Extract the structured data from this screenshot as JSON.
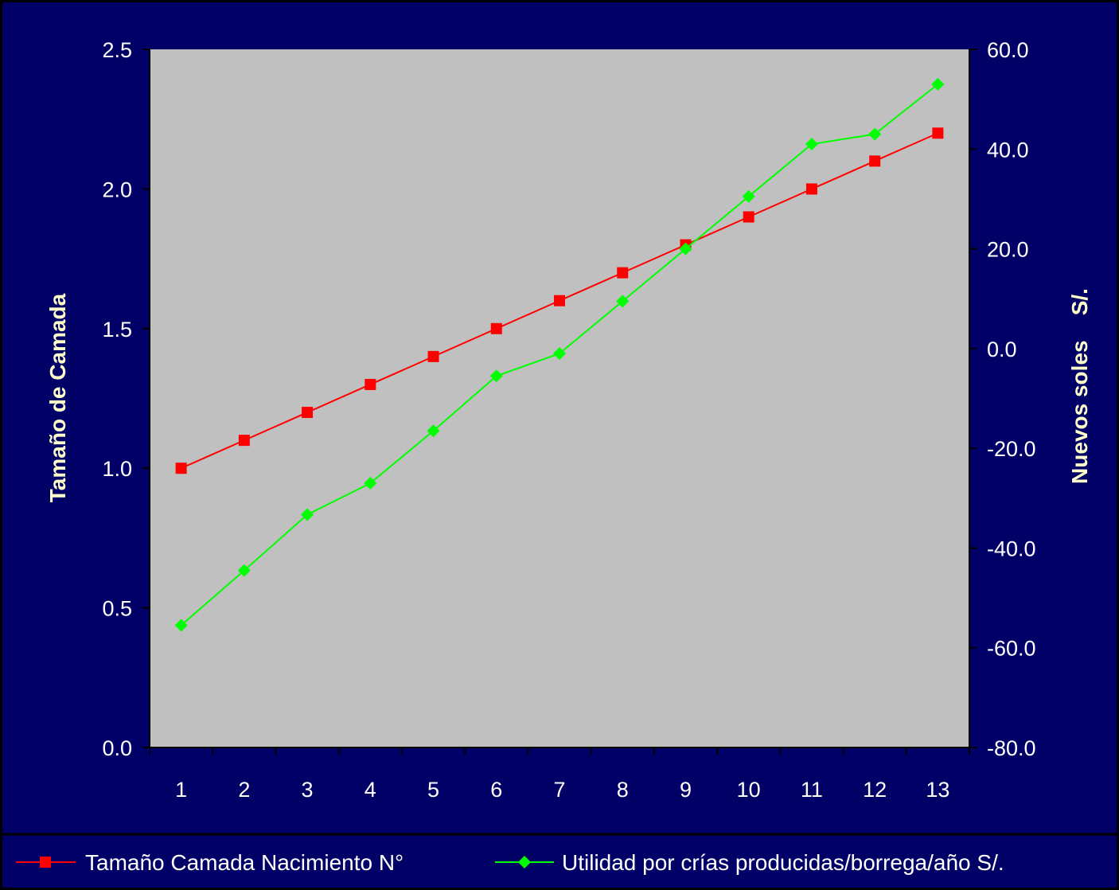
{
  "chart_data": {
    "type": "line",
    "categories": [
      "1",
      "2",
      "3",
      "4",
      "5",
      "6",
      "7",
      "8",
      "9",
      "10",
      "11",
      "12",
      "13"
    ],
    "y_left": {
      "label": "Tamaño de Camada",
      "ylim": [
        0,
        2.5
      ],
      "ticks": [
        "0.0",
        "0.5",
        "1.0",
        "1.5",
        "2.0",
        "2.5"
      ]
    },
    "y_right": {
      "label": "Nuevos soles    S/.",
      "ylim": [
        -80,
        60
      ],
      "ticks": [
        "-80.0",
        "-60.0",
        "-40.0",
        "-20.0",
        "0.0",
        "20.0",
        "40.0",
        "60.0"
      ]
    },
    "series": [
      {
        "name": "Tamaño Camada Nacimiento N°",
        "axis": "left",
        "color": "#ff0000",
        "marker": "square",
        "values": [
          1.0,
          1.1,
          1.2,
          1.3,
          1.4,
          1.5,
          1.6,
          1.7,
          1.8,
          1.9,
          2.0,
          2.1,
          2.2
        ]
      },
      {
        "name": "Utilidad por crías producidas/borrega/año S/.",
        "axis": "right",
        "color": "#00ff00",
        "marker": "diamond",
        "values": [
          -55.5,
          -44.5,
          -33.3,
          -27.0,
          -16.5,
          -5.5,
          -1.0,
          9.5,
          20.0,
          30.5,
          41.0,
          43.0,
          53.0
        ]
      }
    ],
    "plot_background": "#c0c0c0",
    "background": "#000066",
    "grid": false,
    "legend_position": "bottom"
  }
}
